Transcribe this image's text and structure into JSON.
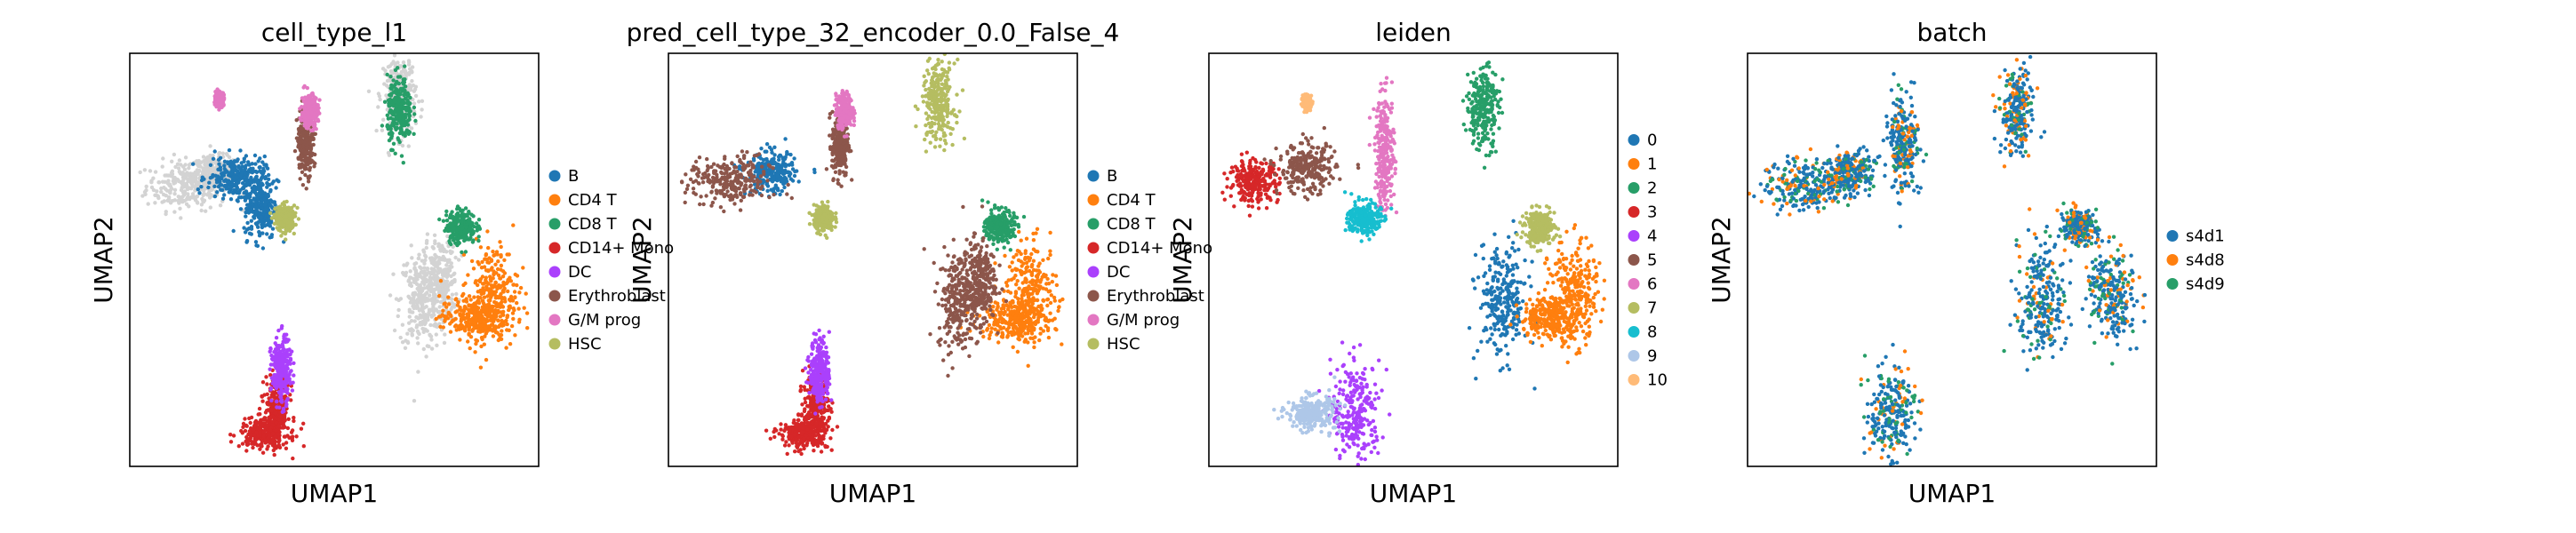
{
  "chart_data": [
    {
      "type": "scatter",
      "title": "cell_type_l1",
      "xlabel": "UMAP1",
      "ylabel": "UMAP2",
      "ticks": false,
      "legend": "right",
      "categories": [
        {
          "name": "B",
          "color": "#1f77b4"
        },
        {
          "name": "CD4 T",
          "color": "#ff7f0e"
        },
        {
          "name": "CD8 T",
          "color": "#279e68"
        },
        {
          "name": "CD14+ Mono",
          "color": "#d62728"
        },
        {
          "name": "DC",
          "color": "#aa40fc"
        },
        {
          "name": "Erythroblast",
          "color": "#8c564b"
        },
        {
          "name": "G/M prog",
          "color": "#e377c2"
        },
        {
          "name": "HSC",
          "color": "#b5bd61"
        }
      ],
      "clusters": [
        {
          "cat": "B",
          "cx": 0.26,
          "cy": 0.7,
          "sx": 0.035,
          "sy": 0.025
        },
        {
          "cat": "B",
          "cx": 0.32,
          "cy": 0.63,
          "sx": 0.02,
          "sy": 0.04
        },
        {
          "cat": "CD4 T",
          "cx": 0.89,
          "cy": 0.42,
          "sx": 0.03,
          "sy": 0.06
        },
        {
          "cat": "CD4 T",
          "cx": 0.84,
          "cy": 0.36,
          "sx": 0.04,
          "sy": 0.025
        },
        {
          "cat": "CD8 T",
          "cx": 0.81,
          "cy": 0.58,
          "sx": 0.018,
          "sy": 0.02
        },
        {
          "cat": "CD8 T",
          "cx": 0.66,
          "cy": 0.86,
          "sx": 0.015,
          "sy": 0.04
        },
        {
          "cat": "CD14+ Mono",
          "cx": 0.33,
          "cy": 0.08,
          "sx": 0.03,
          "sy": 0.018
        },
        {
          "cat": "CD14+ Mono",
          "cx": 0.36,
          "cy": 0.14,
          "sx": 0.015,
          "sy": 0.04
        },
        {
          "cat": "DC",
          "cx": 0.37,
          "cy": 0.23,
          "sx": 0.012,
          "sy": 0.04
        },
        {
          "cat": "Erythroblast",
          "cx": 0.43,
          "cy": 0.79,
          "sx": 0.01,
          "sy": 0.04
        },
        {
          "cat": "G/M prog",
          "cx": 0.44,
          "cy": 0.86,
          "sx": 0.01,
          "sy": 0.02
        },
        {
          "cat": "G/M prog",
          "cx": 0.22,
          "cy": 0.89,
          "sx": 0.005,
          "sy": 0.008
        },
        {
          "cat": "HSC",
          "cx": 0.38,
          "cy": 0.6,
          "sx": 0.012,
          "sy": 0.015
        }
      ],
      "grey_clusters": [
        {
          "cx": 0.14,
          "cy": 0.68,
          "sx": 0.05,
          "sy": 0.03
        },
        {
          "cx": 0.21,
          "cy": 0.71,
          "sx": 0.03,
          "sy": 0.02
        },
        {
          "cx": 0.71,
          "cy": 0.4,
          "sx": 0.025,
          "sy": 0.06
        },
        {
          "cx": 0.76,
          "cy": 0.45,
          "sx": 0.02,
          "sy": 0.05
        },
        {
          "cx": 0.66,
          "cy": 0.9,
          "sx": 0.02,
          "sy": 0.05
        }
      ]
    },
    {
      "type": "scatter",
      "title": "pred_cell_type_32_encoder_0.0_False_4",
      "xlabel": "UMAP1",
      "ylabel": "UMAP2",
      "ticks": false,
      "legend": "right",
      "categories": [
        {
          "name": "B",
          "color": "#1f77b4"
        },
        {
          "name": "CD4 T",
          "color": "#ff7f0e"
        },
        {
          "name": "CD8 T",
          "color": "#279e68"
        },
        {
          "name": "CD14+ Mono",
          "color": "#d62728"
        },
        {
          "name": "DC",
          "color": "#aa40fc"
        },
        {
          "name": "Erythroblast",
          "color": "#8c564b"
        },
        {
          "name": "G/M prog",
          "color": "#e377c2"
        },
        {
          "name": "HSC",
          "color": "#b5bd61"
        }
      ],
      "clusters": [
        {
          "cat": "B",
          "cx": 0.25,
          "cy": 0.71,
          "sx": 0.03,
          "sy": 0.025
        },
        {
          "cat": "CD4 T",
          "cx": 0.89,
          "cy": 0.42,
          "sx": 0.03,
          "sy": 0.06
        },
        {
          "cat": "CD4 T",
          "cx": 0.84,
          "cy": 0.36,
          "sx": 0.04,
          "sy": 0.025
        },
        {
          "cat": "CD8 T",
          "cx": 0.81,
          "cy": 0.58,
          "sx": 0.018,
          "sy": 0.02
        },
        {
          "cat": "CD14+ Mono",
          "cx": 0.33,
          "cy": 0.08,
          "sx": 0.03,
          "sy": 0.018
        },
        {
          "cat": "CD14+ Mono",
          "cx": 0.36,
          "cy": 0.14,
          "sx": 0.015,
          "sy": 0.04
        },
        {
          "cat": "DC",
          "cx": 0.37,
          "cy": 0.23,
          "sx": 0.012,
          "sy": 0.04
        },
        {
          "cat": "Erythroblast",
          "cx": 0.15,
          "cy": 0.69,
          "sx": 0.05,
          "sy": 0.03
        },
        {
          "cat": "Erythroblast",
          "cx": 0.42,
          "cy": 0.78,
          "sx": 0.01,
          "sy": 0.04
        },
        {
          "cat": "Erythroblast",
          "cx": 0.71,
          "cy": 0.4,
          "sx": 0.025,
          "sy": 0.06
        },
        {
          "cat": "Erythroblast",
          "cx": 0.76,
          "cy": 0.45,
          "sx": 0.02,
          "sy": 0.05
        },
        {
          "cat": "G/M prog",
          "cx": 0.43,
          "cy": 0.86,
          "sx": 0.01,
          "sy": 0.02
        },
        {
          "cat": "HSC",
          "cx": 0.38,
          "cy": 0.6,
          "sx": 0.012,
          "sy": 0.015
        },
        {
          "cat": "HSC",
          "cx": 0.66,
          "cy": 0.88,
          "sx": 0.02,
          "sy": 0.05
        }
      ],
      "grey_clusters": []
    },
    {
      "type": "scatter",
      "title": "leiden",
      "xlabel": "UMAP1",
      "ylabel": "UMAP2",
      "ticks": false,
      "legend": "right",
      "categories": [
        {
          "name": "0",
          "color": "#1f77b4"
        },
        {
          "name": "1",
          "color": "#ff7f0e"
        },
        {
          "name": "2",
          "color": "#279e68"
        },
        {
          "name": "3",
          "color": "#d62728"
        },
        {
          "name": "4",
          "color": "#aa40fc"
        },
        {
          "name": "5",
          "color": "#8c564b"
        },
        {
          "name": "6",
          "color": "#e377c2"
        },
        {
          "name": "7",
          "color": "#b5bd61"
        },
        {
          "name": "8",
          "color": "#17becf"
        },
        {
          "name": "9",
          "color": "#aec7e8"
        },
        {
          "name": "10",
          "color": "#ffbb78"
        }
      ],
      "clusters": [
        {
          "cat": "0",
          "cx": 0.72,
          "cy": 0.4,
          "sx": 0.03,
          "sy": 0.07
        },
        {
          "cat": "1",
          "cx": 0.89,
          "cy": 0.42,
          "sx": 0.03,
          "sy": 0.06
        },
        {
          "cat": "1",
          "cx": 0.84,
          "cy": 0.36,
          "sx": 0.04,
          "sy": 0.025
        },
        {
          "cat": "2",
          "cx": 0.67,
          "cy": 0.87,
          "sx": 0.02,
          "sy": 0.05
        },
        {
          "cat": "3",
          "cx": 0.11,
          "cy": 0.69,
          "sx": 0.03,
          "sy": 0.025
        },
        {
          "cat": "4",
          "cx": 0.36,
          "cy": 0.13,
          "sx": 0.03,
          "sy": 0.06
        },
        {
          "cat": "5",
          "cx": 0.24,
          "cy": 0.72,
          "sx": 0.035,
          "sy": 0.03
        },
        {
          "cat": "6",
          "cx": 0.43,
          "cy": 0.76,
          "sx": 0.012,
          "sy": 0.07
        },
        {
          "cat": "7",
          "cx": 0.81,
          "cy": 0.58,
          "sx": 0.018,
          "sy": 0.02
        },
        {
          "cat": "8",
          "cx": 0.38,
          "cy": 0.6,
          "sx": 0.02,
          "sy": 0.02
        },
        {
          "cat": "9",
          "cx": 0.25,
          "cy": 0.13,
          "sx": 0.03,
          "sy": 0.02
        },
        {
          "cat": "10",
          "cx": 0.24,
          "cy": 0.88,
          "sx": 0.005,
          "sy": 0.008
        }
      ],
      "grey_clusters": []
    },
    {
      "type": "scatter",
      "title": "batch",
      "xlabel": "UMAP1",
      "ylabel": "UMAP2",
      "ticks": false,
      "legend": "right",
      "categories": [
        {
          "name": "s4d1",
          "color": "#1f77b4"
        },
        {
          "name": "s4d8",
          "color": "#ff7f0e"
        },
        {
          "name": "s4d9",
          "color": "#279e68"
        }
      ],
      "mixed": true,
      "mixed_weights": [
        0.65,
        0.18,
        0.17
      ],
      "clusters": [
        {
          "cx": 0.14,
          "cy": 0.68,
          "sx": 0.05,
          "sy": 0.03
        },
        {
          "cx": 0.25,
          "cy": 0.71,
          "sx": 0.03,
          "sy": 0.025
        },
        {
          "cx": 0.38,
          "cy": 0.78,
          "sx": 0.02,
          "sy": 0.06
        },
        {
          "cx": 0.66,
          "cy": 0.86,
          "sx": 0.02,
          "sy": 0.05
        },
        {
          "cx": 0.72,
          "cy": 0.4,
          "sx": 0.03,
          "sy": 0.07
        },
        {
          "cx": 0.89,
          "cy": 0.42,
          "sx": 0.03,
          "sy": 0.06
        },
        {
          "cx": 0.81,
          "cy": 0.58,
          "sx": 0.018,
          "sy": 0.02
        },
        {
          "cx": 0.35,
          "cy": 0.13,
          "sx": 0.03,
          "sy": 0.06
        }
      ],
      "grey_clusters": []
    }
  ]
}
